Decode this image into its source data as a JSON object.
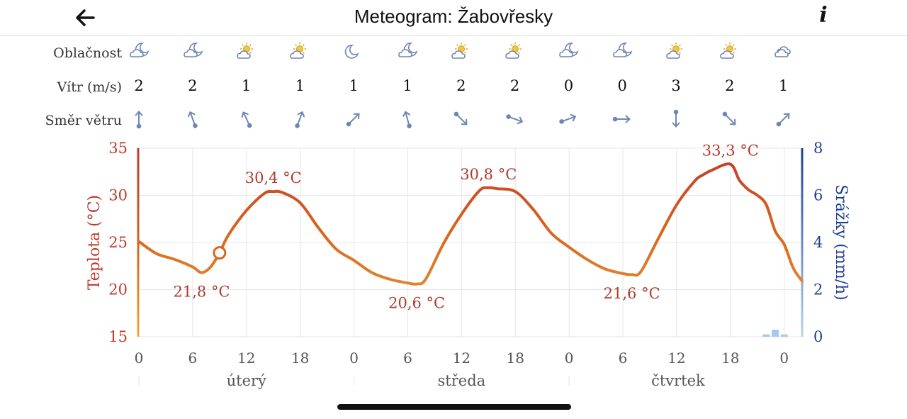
{
  "header": {
    "title": "Meteogram: Žabovřesky",
    "back_icon": "arrow-left-icon",
    "info_label": "i"
  },
  "rows": {
    "cloud_label": "Oblačnost",
    "wind_label": "Vítr (m/s)",
    "direction_label": "Směr větru",
    "clouds": [
      "cloud-moon-icon",
      "cloud-moon-icon",
      "sun-cloud-icon",
      "sun-cloud-icon",
      "moon-icon",
      "cloud-moon-icon",
      "sun-cloud-icon",
      "sun-cloud-icon",
      "cloud-moon-icon",
      "cloud-moon-icon",
      "sun-cloud-icon",
      "sun-cloud-icon",
      "cloudy-icon"
    ],
    "wind": [
      "2",
      "2",
      "1",
      "1",
      "1",
      "1",
      "2",
      "2",
      "0",
      "0",
      "3",
      "2",
      "1"
    ],
    "direction_deg": [
      180,
      160,
      155,
      200,
      225,
      165,
      315,
      290,
      250,
      270,
      0,
      315,
      225
    ]
  },
  "chart_data": {
    "type": "line",
    "ylabel": "Teplota (°C)",
    "ylabel_right": "Srážky (mm/h)",
    "ylim": [
      15,
      35
    ],
    "y_ticks": [
      "35",
      "30",
      "25",
      "20",
      "15"
    ],
    "ylim_right": [
      0,
      8
    ],
    "y_right_ticks": [
      "8",
      "6",
      "4",
      "2",
      "0"
    ],
    "x_ticks": [
      "0",
      "6",
      "12",
      "18",
      "0",
      "6",
      "12",
      "18",
      "0",
      "6",
      "12",
      "18",
      "0"
    ],
    "days": [
      "úterý",
      "středa",
      "čtvrtek"
    ],
    "temperature_series": {
      "name": "Teplota",
      "hours": [
        0,
        2,
        4,
        6,
        7,
        8,
        9,
        10,
        12,
        14,
        15,
        16,
        18,
        20,
        22,
        24,
        26,
        28,
        30,
        31,
        32,
        34,
        36,
        38,
        39,
        40,
        42,
        44,
        46,
        48,
        50,
        52,
        54,
        55,
        56,
        58,
        60,
        62,
        63,
        64,
        66,
        67,
        68,
        69,
        70,
        71,
        72,
        73,
        74
      ],
      "values": [
        25.1,
        23.8,
        23.2,
        22.4,
        21.8,
        22.4,
        23.9,
        25.8,
        28.4,
        30.2,
        30.4,
        30.3,
        29.2,
        26.6,
        24.3,
        23.1,
        21.8,
        21.1,
        20.7,
        20.6,
        21.1,
        24.9,
        28.0,
        30.5,
        30.8,
        30.7,
        30.4,
        28.5,
        26.0,
        24.5,
        23.2,
        22.2,
        21.7,
        21.6,
        21.9,
        25.5,
        29.0,
        31.5,
        32.2,
        32.7,
        33.3,
        31.6,
        30.6,
        30.0,
        29.0,
        26.2,
        24.8,
        22.3,
        20.9
      ]
    },
    "precipitation_series": {
      "name": "Srážky",
      "hours": [
        70,
        71,
        72
      ],
      "values": [
        0.1,
        0.3,
        0.1
      ]
    },
    "annotations": [
      {
        "text": "21,8 °C",
        "hour": 7,
        "value": 21.8,
        "kind": "min"
      },
      {
        "text": "30,4 °C",
        "hour": 15,
        "value": 30.4,
        "kind": "max"
      },
      {
        "text": "20,6 °C",
        "hour": 31,
        "value": 20.6,
        "kind": "min"
      },
      {
        "text": "30,8 °C",
        "hour": 39,
        "value": 30.8,
        "kind": "max"
      },
      {
        "text": "21,6 °C",
        "hour": 55,
        "value": 21.6,
        "kind": "min"
      },
      {
        "text": "33,3 °C",
        "hour": 66,
        "value": 33.3,
        "kind": "max"
      }
    ],
    "cursor": {
      "hour": 9,
      "value": 23.9
    },
    "colors": {
      "warm": "#c0392b",
      "cool": "#e8a23a",
      "axis_left": "#c0392b",
      "axis_right": "#1c3f95",
      "precip": "#a9c8ee"
    }
  }
}
